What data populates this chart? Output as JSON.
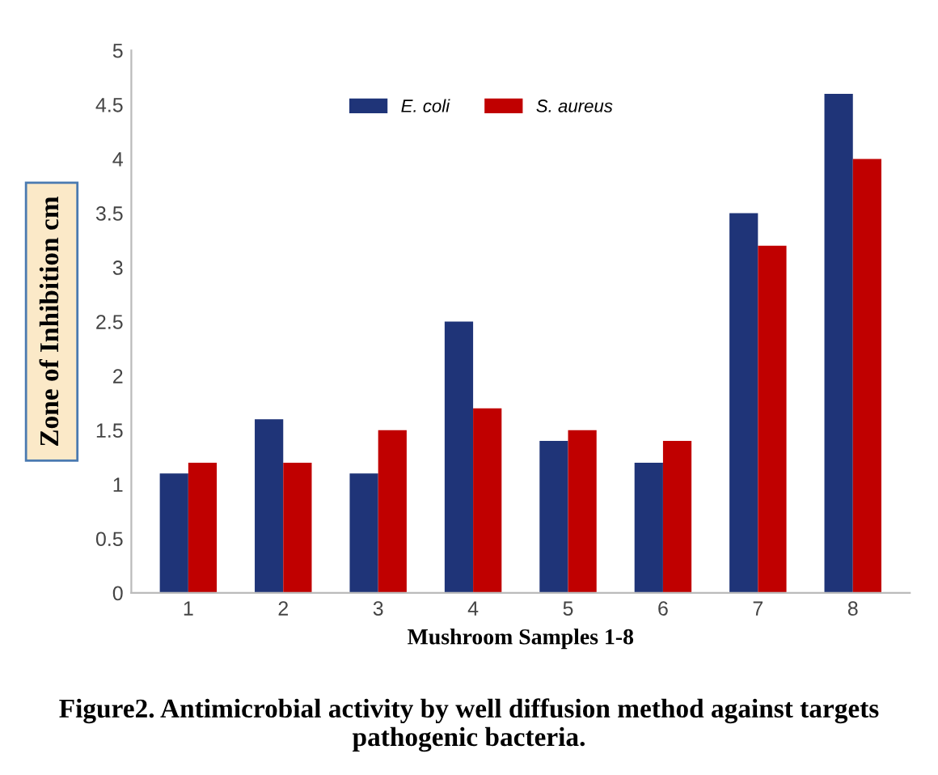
{
  "chart_data": {
    "type": "bar",
    "xlabel": "Mushroom Samples 1-8",
    "ylabel": "Zone of Inhibition cm",
    "categories": [
      "1",
      "2",
      "3",
      "4",
      "5",
      "6",
      "7",
      "8"
    ],
    "series": [
      {
        "name": "E. coli",
        "color": "#1f3478",
        "values": [
          1.1,
          1.6,
          1.1,
          2.5,
          1.4,
          1.2,
          3.5,
          4.6
        ]
      },
      {
        "name": "S. aureus",
        "color": "#c00000",
        "values": [
          1.2,
          1.2,
          1.5,
          1.7,
          1.5,
          1.4,
          3.2,
          4.0
        ]
      }
    ],
    "ylim": [
      0,
      5
    ],
    "yticks": [
      0,
      0.5,
      1,
      1.5,
      2,
      2.5,
      3,
      3.5,
      4,
      4.5,
      5
    ],
    "grid": false,
    "legend": "top",
    "annotations": [
      "Figure2. Antimicrobial activity by well diffusion method against targets pathogenic bacteria."
    ]
  }
}
